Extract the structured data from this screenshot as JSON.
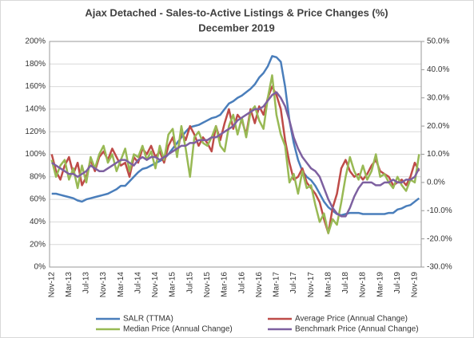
{
  "chart_data": {
    "type": "line",
    "title": "Ajax Detached - Sales-to-Active Listings & Price Changes (%)",
    "subtitle": "December 2019",
    "categories": [
      "Nov-12",
      null,
      null,
      null,
      "Mar-13",
      null,
      null,
      null,
      "Jul-13",
      null,
      null,
      null,
      "Nov-13",
      null,
      null,
      null,
      "Mar-14",
      null,
      null,
      null,
      "Jul-14",
      null,
      null,
      null,
      "Nov-14",
      null,
      null,
      null,
      "Mar-15",
      null,
      null,
      null,
      "Jul-15",
      null,
      null,
      null,
      "Nov-15",
      null,
      null,
      null,
      "Mar-16",
      null,
      null,
      null,
      "Jul-16",
      null,
      null,
      null,
      "Nov-16",
      null,
      null,
      null,
      "Mar-17",
      null,
      null,
      null,
      "Jul-17",
      null,
      null,
      null,
      "Nov-17",
      null,
      null,
      null,
      "Mar-18",
      null,
      null,
      null,
      "Jul-18",
      null,
      null,
      null,
      "Nov-18",
      null,
      null,
      null,
      "Mar-19",
      null,
      null,
      null,
      "Jul-19",
      null,
      null,
      null,
      "Nov-19",
      null
    ],
    "series": [
      {
        "name": "SALR (TTMA)",
        "color": "#4a7ebb",
        "values": [
          65,
          65,
          64,
          63,
          62,
          61,
          59,
          58,
          60,
          61,
          62,
          63,
          64,
          65,
          67,
          69,
          72,
          72,
          76,
          80,
          84,
          87,
          88,
          90,
          92,
          94,
          96,
          100,
          105,
          110,
          115,
          120,
          124,
          125,
          126,
          128,
          130,
          132,
          133,
          135,
          140,
          145,
          147,
          150,
          152,
          155,
          158,
          162,
          168,
          172,
          178,
          187,
          186,
          182,
          160,
          130,
          110,
          95,
          85,
          80,
          77,
          72,
          65,
          58,
          53,
          50,
          47,
          46,
          47,
          48,
          48,
          48,
          47,
          47,
          47,
          47,
          47,
          47,
          48,
          48,
          51,
          52,
          54,
          55,
          58,
          61
        ]
      },
      {
        "name": "Average Price (Annual Change)",
        "color": "#be4b48",
        "axis": "y2",
        "values": [
          10,
          4,
          1,
          6,
          9,
          3,
          7,
          -1,
          2,
          8,
          4,
          9,
          11,
          8,
          12,
          9,
          6,
          7,
          2,
          9,
          7,
          12,
          10,
          13,
          9,
          11,
          7,
          13,
          16,
          10,
          18,
          15,
          20,
          17,
          13,
          16,
          14,
          11,
          20,
          15,
          21,
          26,
          19,
          24,
          22,
          17,
          26,
          21,
          27,
          24,
          30,
          34,
          31,
          26,
          15,
          7,
          1,
          2,
          5,
          0,
          -2,
          -4,
          -7,
          -13,
          -18,
          -9,
          -4,
          5,
          8,
          4,
          2,
          3,
          1,
          3,
          6,
          8,
          4,
          3,
          2,
          -1,
          0,
          1,
          -1,
          2,
          7,
          4
        ]
      },
      {
        "name": "Median Price (Annual Change)",
        "color": "#98b954",
        "axis": "y2",
        "values": [
          8,
          2,
          6,
          8,
          1,
          5,
          -2,
          6,
          0,
          9,
          5,
          10,
          13,
          7,
          10,
          4,
          8,
          12,
          4,
          10,
          9,
          13,
          8,
          11,
          5,
          13,
          8,
          17,
          19,
          9,
          20,
          12,
          2,
          16,
          18,
          14,
          13,
          16,
          20,
          13,
          11,
          20,
          24,
          17,
          23,
          16,
          25,
          27,
          22,
          19,
          30,
          38,
          24,
          17,
          13,
          0,
          3,
          -4,
          4,
          -2,
          -1,
          -8,
          -14,
          -11,
          -18,
          -13,
          -15,
          -7,
          2,
          9,
          4,
          1,
          6,
          1,
          4,
          10,
          2,
          3,
          0,
          -2,
          2,
          -1,
          -3,
          1,
          0,
          10
        ]
      },
      {
        "name": "Benchmark Price (Annual Change)",
        "color": "#7d60a0",
        "axis": "y2",
        "values": [
          7,
          6,
          5,
          4,
          3,
          3,
          2,
          3,
          4,
          6,
          5,
          4,
          4,
          5,
          6,
          7,
          8,
          8,
          7,
          6,
          8,
          9,
          8,
          9,
          9,
          8,
          9,
          10,
          11,
          12,
          13,
          13,
          14,
          14,
          15,
          15,
          15,
          16,
          16,
          17,
          18,
          19,
          20,
          22,
          23,
          24,
          25,
          26,
          26,
          27,
          29,
          31,
          32,
          30,
          27,
          22,
          16,
          12,
          9,
          7,
          5,
          4,
          2,
          -2,
          -6,
          -9,
          -11,
          -12,
          -12,
          -9,
          -5,
          -2,
          0,
          0,
          0,
          -1,
          -1,
          0,
          0,
          1,
          0,
          0,
          1,
          1,
          2,
          5
        ]
      }
    ],
    "ylim": [
      0,
      200
    ],
    "yticks": [
      {
        "value": 0,
        "label": "0%"
      },
      {
        "value": 20,
        "label": "20%"
      },
      {
        "value": 40,
        "label": "40%"
      },
      {
        "value": 60,
        "label": "60%"
      },
      {
        "value": 80,
        "label": "80%"
      },
      {
        "value": 100,
        "label": "100%"
      },
      {
        "value": 120,
        "label": "120%"
      },
      {
        "value": 140,
        "label": "140%"
      },
      {
        "value": 160,
        "label": "160%"
      },
      {
        "value": 180,
        "label": "180%"
      },
      {
        "value": 200,
        "label": "200%"
      }
    ],
    "y2lim": [
      -30,
      50
    ],
    "y2ticks": [
      {
        "value": -30,
        "label": "-30.0%"
      },
      {
        "value": -20,
        "label": "-20.0%"
      },
      {
        "value": -10,
        "label": "-10.0%"
      },
      {
        "value": 0,
        "label": "0.0%"
      },
      {
        "value": 10,
        "label": "10.0%"
      },
      {
        "value": 20,
        "label": "20.0%"
      },
      {
        "value": 30,
        "label": "30.0%"
      },
      {
        "value": 40,
        "label": "40.0%"
      },
      {
        "value": 50,
        "label": "50.0%"
      }
    ],
    "grid": true
  }
}
